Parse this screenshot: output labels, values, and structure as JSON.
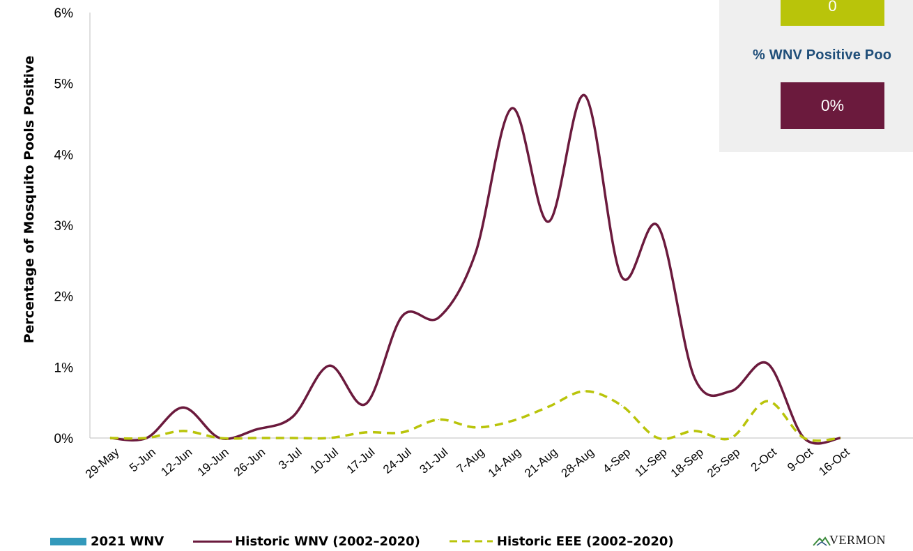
{
  "chart_data": {
    "type": "line",
    "ylabel": "Percentage of Mosquito Pools Positive",
    "ylim": [
      0,
      6
    ],
    "y_tick_labels": [
      "0%",
      "1%",
      "2%",
      "3%",
      "4%",
      "5%",
      "6%"
    ],
    "categories": [
      "29-May",
      "5-Jun",
      "12-Jun",
      "19-Jun",
      "26-Jun",
      "3-Jul",
      "10-Jul",
      "17-Jul",
      "24-Jul",
      "31-Jul",
      "7-Aug",
      "14-Aug",
      "21-Aug",
      "28-Aug",
      "4-Sep",
      "11-Sep",
      "18-Sep",
      "25-Sep",
      "2-Oct",
      "9-Oct",
      "16-Oct"
    ],
    "series": [
      {
        "name": "2021 WNV",
        "style": "bar",
        "color": "#3399bb",
        "values": [
          0,
          0,
          0,
          0,
          0,
          0,
          0,
          0,
          0,
          0,
          0,
          0,
          0,
          0,
          0,
          0,
          0,
          0,
          0,
          0,
          0
        ]
      },
      {
        "name": "Historic WNV (2002–2020)",
        "style": "solid",
        "color": "#6b1a3d",
        "values": [
          0,
          0,
          0.43,
          0,
          0.12,
          0.3,
          1.02,
          0.48,
          1.72,
          1.7,
          2.6,
          4.65,
          3.05,
          4.83,
          2.28,
          2.99,
          0.85,
          0.66,
          1.05,
          0,
          0
        ]
      },
      {
        "name": "Historic EEE (2002–2020)",
        "style": "dashed",
        "color": "#b9c40a",
        "values": [
          0,
          0,
          0.1,
          0,
          0,
          0,
          0,
          0.08,
          0.08,
          0.26,
          0.15,
          0.24,
          0.44,
          0.66,
          0.46,
          0,
          0.1,
          0,
          0.52,
          0,
          0
        ]
      }
    ],
    "legend_position": "bottom-left",
    "grid": false
  },
  "stats": {
    "eee_value": "0",
    "wnv_title": "% WNV Positive Poo",
    "wnv_value": "0%"
  },
  "legend": {
    "items": [
      "2021 WNV",
      "Historic WNV (2002–2020)",
      "Historic EEE (2002–2020)"
    ]
  },
  "logo": {
    "text": "VERMON"
  },
  "colors": {
    "wnv": "#6b1a3d",
    "eee": "#b9c40a",
    "wnv2021": "#3399bb",
    "title": "#1f4e79"
  }
}
